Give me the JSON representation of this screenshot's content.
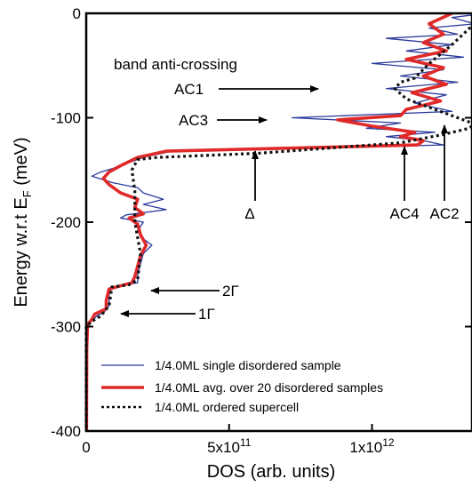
{
  "chart_data": {
    "type": "line",
    "xlabel": "DOS (arb. units)",
    "ylabel": "Energy w.r.t E",
    "ylabel_sub": "F",
    "ylabel_unit": " (meV)",
    "xlim": [
      0,
      1350000000000
    ],
    "ylim": [
      -400,
      0
    ],
    "x_ticks": [
      {
        "value": 0,
        "base": "0",
        "exp": ""
      },
      {
        "value": 500000000000,
        "base": "5x10",
        "exp": "11"
      },
      {
        "value": 1000000000000,
        "base": "1x10",
        "exp": "12"
      }
    ],
    "y_ticks": [
      {
        "value": 0,
        "label": "0"
      },
      {
        "value": -100,
        "label": "-100"
      },
      {
        "value": -200,
        "label": "-200"
      },
      {
        "value": -300,
        "label": "-300"
      },
      {
        "value": -400,
        "label": "-400"
      }
    ],
    "legend_position": "bottom-left",
    "series": [
      {
        "name": "1/4.0ML single disordered sample",
        "color": "#2b3a9a",
        "style": "solid-thin",
        "points": [
          [
            1400000000000.0,
            0
          ],
          [
            1280000000000.0,
            -4
          ],
          [
            1360000000000.0,
            -10
          ],
          [
            1200000000000.0,
            -14
          ],
          [
            1300000000000.0,
            -20
          ],
          [
            1050000000000.0,
            -24
          ],
          [
            1280000000000.0,
            -30
          ],
          [
            1120000000000.0,
            -36
          ],
          [
            1320000000000.0,
            -42
          ],
          [
            1000000000000.0,
            -48
          ],
          [
            1250000000000.0,
            -54
          ],
          [
            1100000000000.0,
            -60
          ],
          [
            1300000000000.0,
            -66
          ],
          [
            1050000000000.0,
            -72
          ],
          [
            1260000000000.0,
            -78
          ],
          [
            1150000000000.0,
            -86
          ],
          [
            1280000000000.0,
            -94
          ],
          [
            720000000000.0,
            -100
          ],
          [
            1100000000000.0,
            -105
          ],
          [
            980000000000.0,
            -110
          ],
          [
            1220000000000.0,
            -114
          ],
          [
            1050000000000.0,
            -118
          ],
          [
            1180000000000.0,
            -122
          ],
          [
            1250000000000.0,
            -126
          ],
          [
            300000000000.0,
            -132
          ],
          [
            200000000000.0,
            -138
          ],
          [
            100000000000.0,
            -148
          ],
          [
            50000000000.0,
            -152
          ],
          [
            20000000000.0,
            -156
          ],
          [
            90000000000.0,
            -162
          ],
          [
            180000000000.0,
            -167
          ],
          [
            200000000000.0,
            -172
          ],
          [
            270000000000.0,
            -178
          ],
          [
            200000000000.0,
            -183
          ],
          [
            280000000000.0,
            -188
          ],
          [
            140000000000.0,
            -193
          ],
          [
            120000000000.0,
            -196
          ],
          [
            200000000000.0,
            -200
          ],
          [
            180000000000.0,
            -208
          ],
          [
            200000000000.0,
            -216
          ],
          [
            230000000000.0,
            -222
          ],
          [
            200000000000.0,
            -230
          ],
          [
            190000000000.0,
            -240
          ],
          [
            180000000000.0,
            -250
          ],
          [
            180000000000.0,
            -258
          ],
          [
            90000000000.0,
            -262
          ],
          [
            80000000000.0,
            -270
          ],
          [
            80000000000.0,
            -280
          ],
          [
            60000000000.0,
            -287
          ],
          [
            40000000000.0,
            -289
          ],
          [
            30000000000.0,
            -292
          ],
          [
            10000000000.0,
            -296
          ],
          [
            3000000000.0,
            -300
          ],
          [
            2000000000.0,
            -320
          ],
          [
            1000000000.0,
            -400
          ]
        ]
      },
      {
        "name": "1/4.0ML avg. over 20 disordered samples",
        "color": "#e02a2a",
        "style": "solid-thick",
        "points": [
          [
            1280000000000.0,
            0
          ],
          [
            1200000000000.0,
            -10
          ],
          [
            1250000000000.0,
            -20
          ],
          [
            1180000000000.0,
            -28
          ],
          [
            1260000000000.0,
            -36
          ],
          [
            1120000000000.0,
            -44
          ],
          [
            1250000000000.0,
            -52
          ],
          [
            1180000000000.0,
            -60
          ],
          [
            1260000000000.0,
            -68
          ],
          [
            1140000000000.0,
            -76
          ],
          [
            1240000000000.0,
            -84
          ],
          [
            1120000000000.0,
            -92
          ],
          [
            1100000000000.0,
            -98
          ],
          [
            880000000000.0,
            -102
          ],
          [
            1000000000000.0,
            -108
          ],
          [
            1150000000000.0,
            -114
          ],
          [
            1100000000000.0,
            -118
          ],
          [
            1180000000000.0,
            -122
          ],
          [
            1160000000000.0,
            -126
          ],
          [
            280000000000.0,
            -132
          ],
          [
            180000000000.0,
            -138
          ],
          [
            120000000000.0,
            -146
          ],
          [
            80000000000.0,
            -152
          ],
          [
            60000000000.0,
            -158
          ],
          [
            80000000000.0,
            -164
          ],
          [
            120000000000.0,
            -172
          ],
          [
            180000000000.0,
            -178
          ],
          [
            170000000000.0,
            -186
          ],
          [
            200000000000.0,
            -192
          ],
          [
            150000000000.0,
            -196
          ],
          [
            180000000000.0,
            -202
          ],
          [
            190000000000.0,
            -212
          ],
          [
            210000000000.0,
            -222
          ],
          [
            190000000000.0,
            -232
          ],
          [
            180000000000.0,
            -242
          ],
          [
            170000000000.0,
            -252
          ],
          [
            160000000000.0,
            -258
          ],
          [
            80000000000.0,
            -264
          ],
          [
            70000000000.0,
            -275
          ],
          [
            70000000000.0,
            -283
          ],
          [
            30000000000.0,
            -288
          ],
          [
            20000000000.0,
            -293
          ],
          [
            5000000000.0,
            -298
          ],
          [
            2000000000.0,
            -320
          ],
          [
            1000000000.0,
            -400
          ]
        ]
      },
      {
        "name": "1/4.0ML ordered supercell",
        "color": "#111111",
        "style": "dotted",
        "points": [
          [
            1380000000000.0,
            0
          ],
          [
            1350000000000.0,
            -12
          ],
          [
            1280000000000.0,
            -30
          ],
          [
            1200000000000.0,
            -48
          ],
          [
            1150000000000.0,
            -62
          ],
          [
            1100000000000.0,
            -66
          ],
          [
            1080000000000.0,
            -72
          ],
          [
            1120000000000.0,
            -82
          ],
          [
            1220000000000.0,
            -92
          ],
          [
            1300000000000.0,
            -100
          ],
          [
            1360000000000.0,
            -106
          ],
          [
            1340000000000.0,
            -110
          ],
          [
            1250000000000.0,
            -116
          ],
          [
            1100000000000.0,
            -124
          ],
          [
            600000000000.0,
            -134
          ],
          [
            250000000000.0,
            -138
          ],
          [
            180000000000.0,
            -140
          ],
          [
            160000000000.0,
            -150
          ],
          [
            170000000000.0,
            -170
          ],
          [
            170000000000.0,
            -200
          ],
          [
            190000000000.0,
            -230
          ],
          [
            180000000000.0,
            -255
          ],
          [
            150000000000.0,
            -260
          ],
          [
            90000000000.0,
            -262
          ],
          [
            80000000000.0,
            -280
          ],
          [
            50000000000.0,
            -290
          ],
          [
            20000000000.0,
            -295
          ],
          [
            0.0,
            -300
          ],
          [
            0.0,
            -400
          ]
        ]
      }
    ],
    "annotations": [
      {
        "text": "band anti-crossing"
      },
      {
        "text": "AC1"
      },
      {
        "text": "AC3"
      },
      {
        "text": "Δ"
      },
      {
        "text": "AC4"
      },
      {
        "text": "AC2"
      },
      {
        "text": "2Γ"
      },
      {
        "text": "1Γ"
      }
    ]
  }
}
